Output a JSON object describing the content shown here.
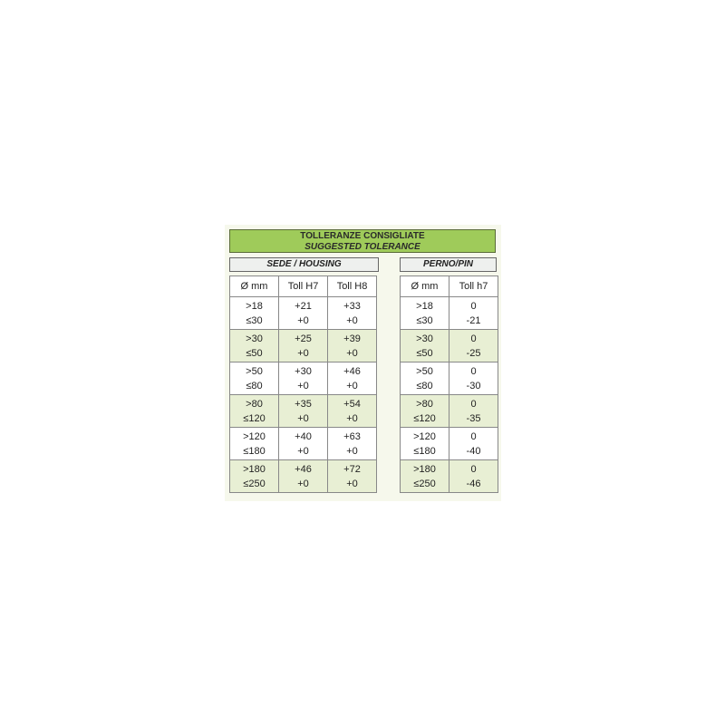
{
  "title": {
    "line1": "TOLLERANZE CONSIGLIATE",
    "line2": "SUGGESTED TOLERANCE"
  },
  "housing": {
    "label": "SEDE / HOUSING",
    "headers": [
      "Ø mm",
      "Toll H7",
      "Toll H8"
    ],
    "rows": [
      [
        ">18\n≤30",
        "+21\n+0",
        "+33\n+0"
      ],
      [
        ">30\n≤50",
        "+25\n+0",
        "+39\n+0"
      ],
      [
        ">50\n≤80",
        "+30\n+0",
        "+46\n+0"
      ],
      [
        ">80\n≤120",
        "+35\n+0",
        "+54\n+0"
      ],
      [
        ">120\n≤180",
        "+40\n+0",
        "+63\n+0"
      ],
      [
        ">180\n≤250",
        "+46\n+0",
        "+72\n+0"
      ]
    ]
  },
  "pin": {
    "label": "PERNO/PIN",
    "headers": [
      "Ø mm",
      "Toll h7"
    ],
    "rows": [
      [
        ">18\n≤30",
        "0\n-21"
      ],
      [
        ">30\n≤50",
        "0\n-25"
      ],
      [
        ">50\n≤80",
        "0\n-30"
      ],
      [
        ">80\n≤120",
        "0\n-35"
      ],
      [
        ">120\n≤180",
        "0\n-40"
      ],
      [
        ">180\n≤250",
        "0\n-46"
      ]
    ]
  },
  "colors": {
    "title_bg": "#9fcb5a",
    "alt_row": "#e8efd4"
  }
}
